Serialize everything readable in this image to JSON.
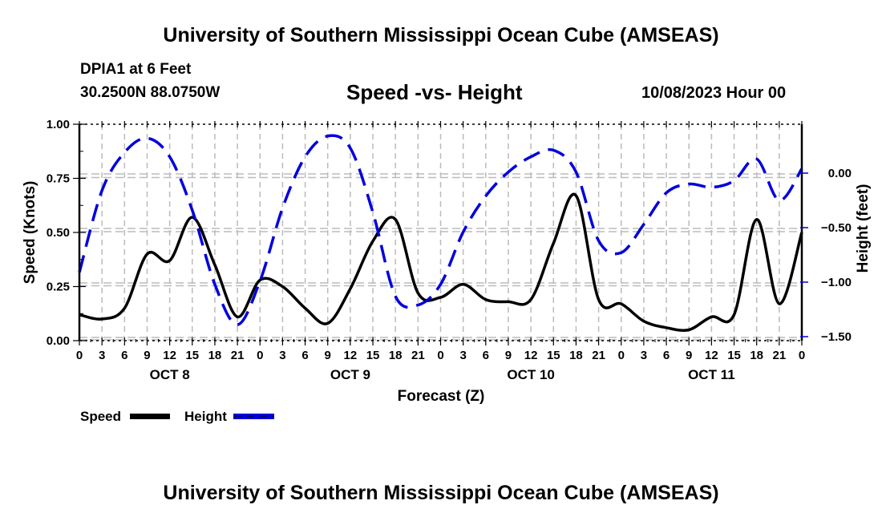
{
  "header": {
    "main_title": "University of Southern Mississippi Ocean Cube (AMSEAS)",
    "station": "DPIA1 at 6 Feet",
    "coords": "30.2500N  88.0750W",
    "chart_title": "Speed -vs- Height",
    "run_time": "10/08/2023 Hour 00"
  },
  "footer": {
    "title": "University of Southern Mississippi Ocean Cube (AMSEAS)"
  },
  "chart_data": {
    "type": "line",
    "title": "Speed -vs- Height",
    "xlabel": "Forecast (Z)",
    "ylabel": "Speed (Knots)",
    "y2label": "Height (feet)",
    "xlim": [
      0,
      96
    ],
    "ylim": [
      0,
      1.0
    ],
    "y2lim": [
      -1.5,
      0.5
    ],
    "x_tick_labels": [
      "0",
      "3",
      "6",
      "9",
      "12",
      "15",
      "18",
      "21",
      "0",
      "3",
      "6",
      "9",
      "12",
      "15",
      "18",
      "21",
      "0",
      "3",
      "6",
      "9",
      "12",
      "15",
      "18",
      "21",
      "0",
      "3",
      "6",
      "9",
      "12",
      "15",
      "18",
      "21",
      "0"
    ],
    "day_labels": [
      {
        "label": "OCT 8",
        "hour": 12
      },
      {
        "label": "OCT 9",
        "hour": 36
      },
      {
        "label": "OCT 10",
        "hour": 60
      },
      {
        "label": "OCT 11",
        "hour": 84
      }
    ],
    "y_ticks": [
      "0.00",
      "0.25",
      "0.50",
      "0.75",
      "1.00"
    ],
    "y_tick_values": [
      0,
      0.25,
      0.5,
      0.75,
      1.0
    ],
    "y2_ticks": [
      "0.00",
      "−0.50",
      "−1.00",
      "−1.50"
    ],
    "y2_tick_values": [
      0,
      -0.5,
      -1.0,
      -1.5
    ],
    "grid": true,
    "legend_position": "bottom-left",
    "x": [
      0,
      3,
      6,
      9,
      12,
      15,
      18,
      21,
      24,
      27,
      30,
      33,
      36,
      39,
      42,
      45,
      48,
      51,
      54,
      57,
      60,
      63,
      66,
      69,
      72,
      75,
      78,
      81,
      84,
      87,
      90,
      93,
      96
    ],
    "series": [
      {
        "name": "Speed",
        "axis": "left",
        "color": "#000000",
        "style": "solid",
        "values": [
          0.12,
          0.1,
          0.15,
          0.4,
          0.37,
          0.57,
          0.35,
          0.11,
          0.28,
          0.25,
          0.15,
          0.08,
          0.24,
          0.46,
          0.56,
          0.22,
          0.2,
          0.26,
          0.19,
          0.18,
          0.19,
          0.45,
          0.67,
          0.19,
          0.17,
          0.09,
          0.06,
          0.05,
          0.11,
          0.12,
          0.56,
          0.17,
          0.5
        ]
      },
      {
        "name": "Height",
        "axis": "right",
        "color": "#0000dd",
        "style": "dashed",
        "values": [
          -0.91,
          -0.16,
          0.19,
          0.32,
          0.15,
          -0.34,
          -1.02,
          -1.39,
          -0.99,
          -0.32,
          0.15,
          0.34,
          0.23,
          -0.36,
          -1.13,
          -1.21,
          -1.02,
          -0.54,
          -0.21,
          0.01,
          0.15,
          0.21,
          0.01,
          -0.62,
          -0.73,
          -0.47,
          -0.18,
          -0.1,
          -0.13,
          -0.07,
          0.13,
          -0.25,
          0.04
        ]
      }
    ]
  },
  "legend": {
    "speed_label": "Speed",
    "height_label": "Height"
  }
}
